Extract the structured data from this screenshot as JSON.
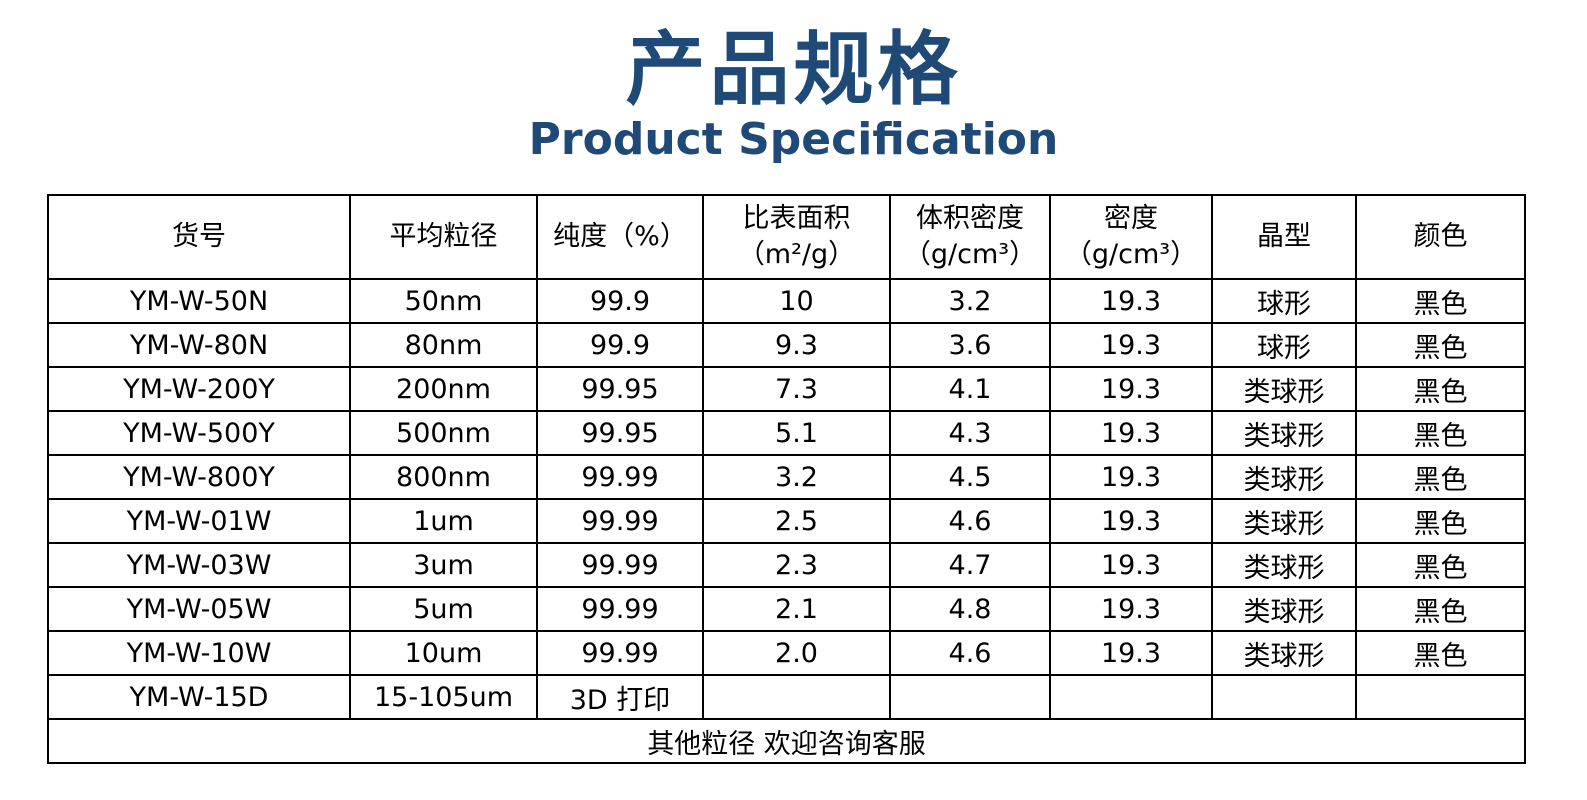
{
  "header": {
    "title": "产品规格",
    "subtitle": "Product Specification"
  },
  "table": {
    "headers": [
      "货号",
      "平均粒径",
      "纯度（%）",
      [
        "比表面积",
        "（m²/g）"
      ],
      [
        "体积密度",
        "（g/cm³）"
      ],
      [
        "密度",
        "（g/cm³）"
      ],
      "晶型",
      "颜色"
    ],
    "rows": [
      [
        "YM-W-50N",
        "50nm",
        "99.9",
        "10",
        "3.2",
        "19.3",
        "球形",
        "黑色"
      ],
      [
        "YM-W-80N",
        "80nm",
        "99.9",
        "9.3",
        "3.6",
        "19.3",
        "球形",
        "黑色"
      ],
      [
        "YM-W-200Y",
        "200nm",
        "99.95",
        "7.3",
        "4.1",
        "19.3",
        "类球形",
        "黑色"
      ],
      [
        "YM-W-500Y",
        "500nm",
        "99.95",
        "5.1",
        "4.3",
        "19.3",
        "类球形",
        "黑色"
      ],
      [
        "YM-W-800Y",
        "800nm",
        "99.99",
        "3.2",
        "4.5",
        "19.3",
        "类球形",
        "黑色"
      ],
      [
        "YM-W-01W",
        "1um",
        "99.99",
        "2.5",
        "4.6",
        "19.3",
        "类球形",
        "黑色"
      ],
      [
        "YM-W-03W",
        "3um",
        "99.99",
        "2.3",
        "4.7",
        "19.3",
        "类球形",
        "黑色"
      ],
      [
        "YM-W-05W",
        "5um",
        "99.99",
        "2.1",
        "4.8",
        "19.3",
        "类球形",
        "黑色"
      ],
      [
        "YM-W-10W",
        "10um",
        "99.99",
        "2.0",
        "4.6",
        "19.3",
        "类球形",
        "黑色"
      ],
      [
        "YM-W-15D",
        "15-105um",
        "3D 打印"
      ]
    ],
    "footer": "其他粒径 欢迎咨询客服"
  }
}
